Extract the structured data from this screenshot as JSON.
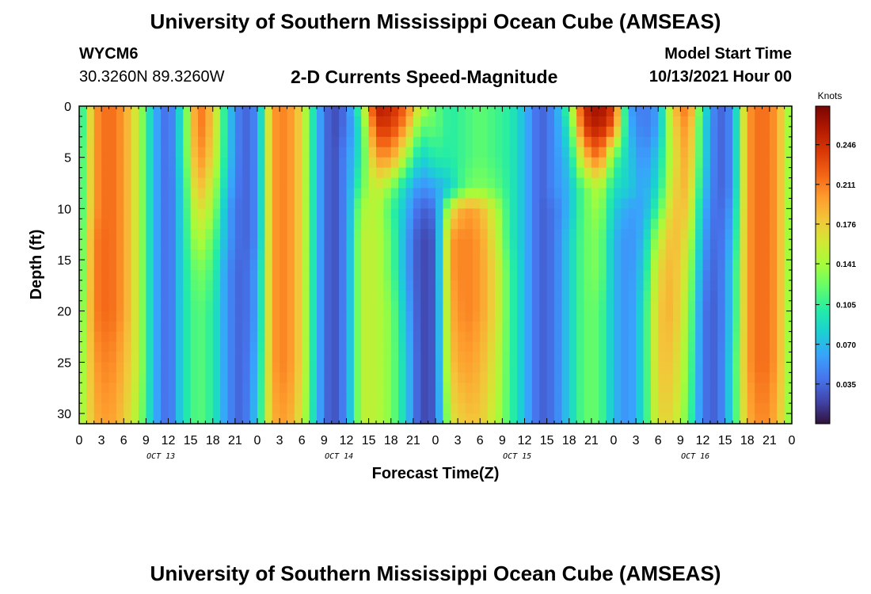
{
  "header": {
    "title": "University of Southern Mississippi Ocean Cube (AMSEAS)",
    "station_id": "WYCM6",
    "station_coords": "30.3260N  89.3260W",
    "subtitle": "2-D Currents Speed-Magnitude",
    "model_start_label": "Model Start Time",
    "model_start_value": "10/13/2021 Hour 00"
  },
  "footer": {
    "title": "University of Southern Mississippi Ocean Cube (AMSEAS)"
  },
  "chart_data": {
    "type": "heatmap",
    "title": "2-D Currents Speed-Magnitude",
    "xlabel": "Forecast Time(Z)",
    "ylabel": "Depth (ft)",
    "x_range_hours": [
      0,
      96
    ],
    "y_range_ft": [
      0,
      31
    ],
    "x_tick_hours": [
      0,
      3,
      6,
      9,
      12,
      15,
      18,
      21,
      24,
      27,
      30,
      33,
      36,
      39,
      42,
      45,
      48,
      51,
      54,
      57,
      60,
      63,
      66,
      69,
      72,
      75,
      78,
      81,
      84,
      87,
      90,
      93,
      96
    ],
    "x_tick_labels": [
      "0",
      "3",
      "6",
      "9",
      "12",
      "15",
      "18",
      "21",
      "0",
      "3",
      "6",
      "9",
      "12",
      "15",
      "18",
      "21",
      "0",
      "3",
      "6",
      "9",
      "12",
      "15",
      "18",
      "21",
      "0",
      "3",
      "6",
      "9",
      "12",
      "15",
      "18",
      "21",
      "0"
    ],
    "day_labels": [
      {
        "label": "OCT 13",
        "center_hour": 11
      },
      {
        "label": "OCT 14",
        "center_hour": 35
      },
      {
        "label": "OCT 15",
        "center_hour": 59
      },
      {
        "label": "OCT 16",
        "center_hour": 83
      }
    ],
    "y_ticks": [
      0,
      5,
      10,
      15,
      20,
      25,
      30
    ],
    "y_tick_labels": [
      "0",
      "5",
      "10",
      "15",
      "20",
      "25",
      "30"
    ],
    "colorbar": {
      "label": "Knots",
      "range": [
        0.0,
        0.28
      ],
      "ticks": [
        0.035,
        0.07,
        0.105,
        0.141,
        0.176,
        0.211,
        0.246
      ],
      "tick_labels": [
        "0.035",
        "0.070",
        "0.105",
        "0.141",
        "0.176",
        "0.211",
        "0.246"
      ],
      "colors": [
        "#30123b",
        "#4145ab",
        "#4675ed",
        "#39a2fc",
        "#1bcfd4",
        "#24eca6",
        "#61fc6c",
        "#a4fc3b",
        "#d1e834",
        "#f3c63a",
        "#fe9b2d",
        "#f36315",
        "#d93806",
        "#b11901",
        "#7a0403"
      ]
    },
    "depth_levels_ft": [
      0,
      2,
      5,
      8,
      10,
      13,
      16,
      20,
      25,
      31
    ],
    "hours": [
      0,
      2,
      4,
      6,
      8,
      10,
      12,
      14,
      16,
      18,
      20,
      22,
      24,
      26,
      28,
      30,
      32,
      34,
      36,
      38,
      40,
      42,
      44,
      46,
      48,
      50,
      52,
      54,
      56,
      58,
      60,
      62,
      64,
      66,
      68,
      70,
      72,
      74,
      76,
      78,
      80,
      82,
      84,
      86,
      88,
      90,
      92,
      94,
      96
    ],
    "speed_knots": [
      [
        0.08,
        0.2,
        0.22,
        0.2,
        0.15,
        0.07,
        0.03,
        0.1,
        0.22,
        0.18,
        0.08,
        0.03,
        0.05,
        0.2,
        0.21,
        0.17,
        0.07,
        0.02,
        0.04,
        0.12,
        0.26,
        0.25,
        0.22,
        0.15,
        0.12,
        0.1,
        0.11,
        0.12,
        0.11,
        0.1,
        0.07,
        0.03,
        0.05,
        0.12,
        0.25,
        0.27,
        0.24,
        0.06,
        0.04,
        0.06,
        0.18,
        0.22,
        0.1,
        0.03,
        0.05,
        0.2,
        0.22,
        0.2,
        0.12
      ],
      [
        0.08,
        0.2,
        0.22,
        0.2,
        0.15,
        0.07,
        0.03,
        0.1,
        0.22,
        0.18,
        0.08,
        0.03,
        0.05,
        0.2,
        0.21,
        0.17,
        0.07,
        0.02,
        0.04,
        0.1,
        0.24,
        0.24,
        0.2,
        0.12,
        0.12,
        0.1,
        0.11,
        0.12,
        0.11,
        0.1,
        0.07,
        0.03,
        0.05,
        0.1,
        0.24,
        0.26,
        0.22,
        0.07,
        0.04,
        0.06,
        0.17,
        0.21,
        0.09,
        0.03,
        0.05,
        0.2,
        0.22,
        0.2,
        0.12
      ],
      [
        0.09,
        0.2,
        0.22,
        0.2,
        0.15,
        0.07,
        0.03,
        0.1,
        0.21,
        0.17,
        0.08,
        0.03,
        0.05,
        0.2,
        0.21,
        0.17,
        0.07,
        0.02,
        0.05,
        0.1,
        0.2,
        0.2,
        0.14,
        0.08,
        0.1,
        0.1,
        0.11,
        0.12,
        0.11,
        0.1,
        0.07,
        0.03,
        0.05,
        0.08,
        0.18,
        0.22,
        0.12,
        0.08,
        0.05,
        0.08,
        0.16,
        0.2,
        0.09,
        0.03,
        0.05,
        0.2,
        0.22,
        0.2,
        0.12
      ],
      [
        0.09,
        0.2,
        0.22,
        0.2,
        0.15,
        0.07,
        0.03,
        0.09,
        0.19,
        0.15,
        0.07,
        0.03,
        0.05,
        0.2,
        0.21,
        0.17,
        0.07,
        0.02,
        0.05,
        0.12,
        0.16,
        0.13,
        0.08,
        0.05,
        0.06,
        0.08,
        0.12,
        0.13,
        0.12,
        0.1,
        0.07,
        0.03,
        0.05,
        0.07,
        0.12,
        0.15,
        0.09,
        0.08,
        0.06,
        0.09,
        0.17,
        0.19,
        0.08,
        0.03,
        0.05,
        0.2,
        0.22,
        0.2,
        0.12
      ],
      [
        0.09,
        0.2,
        0.22,
        0.2,
        0.15,
        0.07,
        0.03,
        0.09,
        0.17,
        0.14,
        0.06,
        0.03,
        0.05,
        0.2,
        0.21,
        0.17,
        0.07,
        0.02,
        0.05,
        0.14,
        0.15,
        0.11,
        0.07,
        0.03,
        0.04,
        0.16,
        0.2,
        0.19,
        0.15,
        0.1,
        0.07,
        0.03,
        0.04,
        0.07,
        0.12,
        0.14,
        0.08,
        0.06,
        0.06,
        0.11,
        0.18,
        0.18,
        0.07,
        0.03,
        0.06,
        0.2,
        0.22,
        0.2,
        0.12
      ],
      [
        0.1,
        0.21,
        0.22,
        0.2,
        0.15,
        0.07,
        0.03,
        0.09,
        0.15,
        0.12,
        0.06,
        0.03,
        0.05,
        0.2,
        0.21,
        0.17,
        0.07,
        0.02,
        0.05,
        0.15,
        0.15,
        0.12,
        0.06,
        0.02,
        0.03,
        0.2,
        0.21,
        0.2,
        0.16,
        0.1,
        0.07,
        0.03,
        0.04,
        0.08,
        0.12,
        0.13,
        0.07,
        0.05,
        0.07,
        0.15,
        0.19,
        0.16,
        0.06,
        0.03,
        0.07,
        0.2,
        0.22,
        0.2,
        0.12
      ],
      [
        0.1,
        0.21,
        0.22,
        0.2,
        0.15,
        0.07,
        0.03,
        0.09,
        0.13,
        0.11,
        0.05,
        0.03,
        0.06,
        0.2,
        0.21,
        0.17,
        0.07,
        0.02,
        0.05,
        0.15,
        0.15,
        0.12,
        0.06,
        0.02,
        0.03,
        0.2,
        0.21,
        0.2,
        0.17,
        0.11,
        0.07,
        0.03,
        0.04,
        0.08,
        0.12,
        0.13,
        0.07,
        0.05,
        0.08,
        0.17,
        0.19,
        0.15,
        0.05,
        0.03,
        0.08,
        0.2,
        0.22,
        0.2,
        0.12
      ],
      [
        0.11,
        0.21,
        0.22,
        0.2,
        0.15,
        0.07,
        0.03,
        0.09,
        0.12,
        0.1,
        0.05,
        0.03,
        0.06,
        0.2,
        0.21,
        0.17,
        0.07,
        0.02,
        0.05,
        0.15,
        0.15,
        0.13,
        0.07,
        0.02,
        0.03,
        0.19,
        0.21,
        0.2,
        0.17,
        0.11,
        0.07,
        0.03,
        0.04,
        0.08,
        0.12,
        0.12,
        0.07,
        0.05,
        0.09,
        0.18,
        0.19,
        0.14,
        0.04,
        0.03,
        0.08,
        0.2,
        0.22,
        0.2,
        0.12
      ],
      [
        0.12,
        0.2,
        0.21,
        0.19,
        0.15,
        0.07,
        0.03,
        0.09,
        0.12,
        0.1,
        0.05,
        0.03,
        0.07,
        0.2,
        0.21,
        0.17,
        0.07,
        0.02,
        0.05,
        0.15,
        0.15,
        0.13,
        0.08,
        0.02,
        0.03,
        0.18,
        0.2,
        0.19,
        0.16,
        0.11,
        0.07,
        0.03,
        0.04,
        0.08,
        0.12,
        0.12,
        0.07,
        0.05,
        0.09,
        0.18,
        0.18,
        0.13,
        0.04,
        0.03,
        0.09,
        0.2,
        0.22,
        0.2,
        0.12
      ],
      [
        0.13,
        0.19,
        0.2,
        0.18,
        0.14,
        0.07,
        0.03,
        0.09,
        0.12,
        0.1,
        0.05,
        0.03,
        0.08,
        0.19,
        0.2,
        0.16,
        0.07,
        0.02,
        0.05,
        0.15,
        0.15,
        0.13,
        0.08,
        0.02,
        0.03,
        0.16,
        0.18,
        0.18,
        0.15,
        0.11,
        0.07,
        0.03,
        0.04,
        0.08,
        0.12,
        0.12,
        0.07,
        0.05,
        0.09,
        0.17,
        0.17,
        0.12,
        0.04,
        0.03,
        0.09,
        0.19,
        0.21,
        0.19,
        0.12
      ]
    ]
  }
}
